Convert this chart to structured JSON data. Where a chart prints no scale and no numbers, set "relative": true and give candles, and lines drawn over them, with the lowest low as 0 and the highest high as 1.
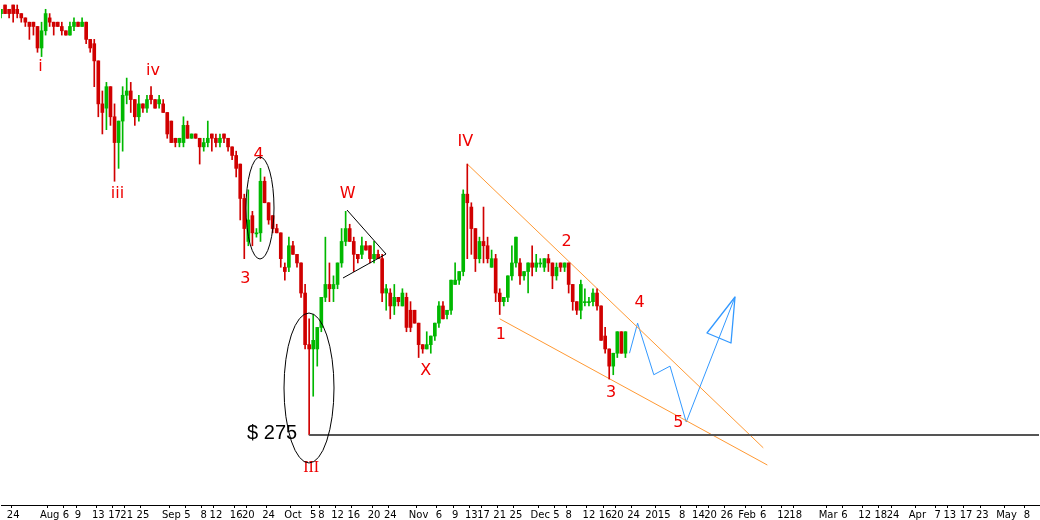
{
  "chart_data": {
    "type": "candlestick",
    "relative": true,
    "categories": [
      null,
      null,
      null,
      "24",
      null,
      null,
      null,
      null,
      null,
      null,
      null,
      null,
      "Aug",
      null,
      null,
      null,
      "6",
      null,
      null,
      "9",
      null,
      null,
      null,
      null,
      "13",
      null,
      null,
      null,
      "17",
      null,
      null,
      "21",
      null,
      null,
      null,
      "25",
      null,
      null,
      null,
      null,
      null,
      null,
      "Sep",
      null,
      null,
      null,
      "5",
      null,
      null,
      null,
      "8",
      null,
      null,
      "12",
      null,
      null,
      null,
      null,
      "16",
      null,
      null,
      "20",
      null,
      null,
      null,
      null,
      "24",
      null,
      null,
      null,
      null,
      null,
      "Oct",
      null,
      null,
      null,
      null,
      "5",
      null,
      "8",
      null,
      null,
      null,
      "12",
      null,
      null,
      null,
      "16",
      null,
      null,
      null,
      null,
      "20",
      null,
      null,
      null,
      "24",
      null,
      null,
      null,
      null,
      null,
      null,
      "Nov",
      null,
      null,
      null,
      null,
      "6",
      null,
      null,
      null,
      "9",
      null,
      null,
      null,
      "13",
      null,
      null,
      "17",
      null,
      null,
      null,
      "21",
      null,
      null,
      null,
      "25",
      null,
      null,
      null,
      null,
      null,
      "Dec",
      null,
      null,
      null,
      "5",
      null,
      null,
      "8",
      null,
      null,
      null,
      null,
      "12",
      null,
      null,
      null,
      "16",
      null,
      null,
      "20",
      null,
      null,
      null,
      "24",
      null,
      null,
      null,
      null,
      null,
      "2015",
      null,
      null,
      null,
      null,
      null,
      "8",
      null,
      null,
      null,
      "14",
      null,
      null,
      "20",
      null,
      null,
      null,
      "26",
      null,
      null,
      null,
      null,
      "Feb",
      null,
      null,
      null,
      "6",
      null,
      null,
      null,
      null,
      "12",
      null,
      null,
      "18",
      null,
      null,
      null,
      null,
      null,
      null,
      null,
      "Mar",
      null,
      null,
      null,
      "6",
      null,
      null,
      null,
      null,
      "12",
      null,
      null,
      null,
      "18",
      null,
      null,
      "24",
      null,
      null,
      null,
      null,
      null,
      "Apr",
      null,
      null,
      null,
      null,
      "7",
      null,
      null,
      "13",
      null,
      null,
      null,
      "17",
      null,
      null,
      null,
      "23",
      null,
      null,
      null,
      null,
      null,
      "May",
      null,
      null,
      null,
      null,
      "8",
      null,
      null,
      null
    ],
    "ohlc": [
      [
        0.98,
        0.99,
        0.97,
        0.99
      ],
      [
        1.0,
        1.0,
        0.98,
        0.98
      ],
      [
        0.99,
        0.99,
        0.97,
        0.98
      ],
      [
        1.0,
        1.0,
        0.96,
        0.98
      ],
      [
        0.99,
        1.0,
        0.97,
        0.98
      ],
      [
        0.98,
        0.98,
        0.96,
        0.97
      ],
      [
        0.97,
        0.97,
        0.95,
        0.96
      ],
      [
        0.96,
        0.96,
        0.92,
        0.95
      ],
      [
        0.96,
        0.96,
        0.93,
        0.95
      ],
      [
        0.95,
        0.95,
        0.89,
        0.9
      ],
      [
        0.9,
        0.96,
        0.88,
        0.94
      ],
      [
        0.94,
        0.99,
        0.93,
        0.98
      ],
      [
        0.97,
        0.98,
        0.95,
        0.96
      ],
      [
        0.96,
        0.96,
        0.93,
        0.95
      ],
      [
        0.96,
        0.96,
        0.95,
        0.95
      ],
      [
        0.95,
        0.96,
        0.93,
        0.94
      ],
      [
        0.94,
        0.94,
        0.93,
        0.93
      ],
      [
        0.93,
        0.96,
        0.93,
        0.95
      ],
      [
        0.95,
        0.97,
        0.94,
        0.96
      ],
      [
        0.96,
        0.96,
        0.95,
        0.95
      ],
      [
        0.95,
        0.97,
        0.95,
        0.96
      ],
      [
        0.96,
        0.96,
        0.91,
        0.92
      ],
      [
        0.92,
        0.92,
        0.89,
        0.9
      ],
      [
        0.91,
        0.92,
        0.81,
        0.87
      ],
      [
        0.87,
        0.87,
        0.74,
        0.77
      ],
      [
        0.77,
        0.8,
        0.7,
        0.75
      ],
      [
        0.76,
        0.82,
        0.71,
        0.81
      ],
      [
        0.81,
        0.81,
        0.72,
        0.74
      ],
      [
        0.74,
        0.77,
        0.59,
        0.68
      ],
      [
        0.68,
        0.73,
        0.62,
        0.73
      ],
      [
        0.73,
        0.81,
        0.66,
        0.79
      ],
      [
        0.79,
        0.83,
        0.77,
        0.8
      ],
      [
        0.8,
        0.82,
        0.75,
        0.78
      ],
      [
        0.78,
        0.78,
        0.72,
        0.74
      ],
      [
        0.74,
        0.79,
        0.73,
        0.77
      ],
      [
        0.77,
        0.77,
        0.75,
        0.76
      ],
      [
        0.76,
        0.79,
        0.75,
        0.78
      ],
      [
        0.79,
        0.81,
        0.77,
        0.78
      ],
      [
        0.78,
        0.78,
        0.76,
        0.76
      ],
      [
        0.77,
        0.79,
        0.76,
        0.78
      ],
      [
        0.77,
        0.78,
        0.75,
        0.75
      ],
      [
        0.75,
        0.75,
        0.69,
        0.7
      ],
      [
        0.73,
        0.73,
        0.68,
        0.68
      ],
      [
        0.69,
        0.69,
        0.67,
        0.68
      ],
      [
        0.68,
        0.69,
        0.67,
        0.69
      ],
      [
        0.68,
        0.74,
        0.67,
        0.72
      ],
      [
        0.72,
        0.73,
        0.69,
        0.69
      ],
      [
        0.69,
        0.7,
        0.69,
        0.7
      ],
      [
        0.7,
        0.7,
        0.69,
        0.69
      ],
      [
        0.69,
        0.69,
        0.63,
        0.67
      ],
      [
        0.67,
        0.69,
        0.66,
        0.68
      ],
      [
        0.68,
        0.73,
        0.67,
        0.69
      ],
      [
        0.7,
        0.7,
        0.66,
        0.69
      ],
      [
        0.69,
        0.7,
        0.67,
        0.68
      ],
      [
        0.68,
        0.7,
        0.67,
        0.69
      ],
      [
        0.7,
        0.7,
        0.68,
        0.69
      ],
      [
        0.69,
        0.69,
        0.66,
        0.67
      ],
      [
        0.67,
        0.67,
        0.64,
        0.65
      ],
      [
        0.65,
        0.66,
        0.6,
        0.62
      ],
      [
        0.63,
        0.63,
        0.5,
        0.55
      ],
      [
        0.55,
        0.56,
        0.41,
        0.48
      ],
      [
        0.45,
        0.57,
        0.44,
        0.5
      ],
      [
        0.51,
        0.52,
        0.44,
        0.47
      ],
      [
        0.47,
        0.48,
        0.46,
        0.47
      ],
      [
        0.47,
        0.62,
        0.45,
        0.59
      ],
      [
        0.59,
        0.6,
        0.54,
        0.54
      ],
      [
        0.54,
        0.54,
        0.49,
        0.5
      ],
      [
        0.51,
        0.51,
        0.47,
        0.48
      ],
      [
        0.48,
        0.49,
        0.47,
        0.47
      ],
      [
        0.47,
        0.47,
        0.39,
        0.41
      ],
      [
        0.39,
        0.4,
        0.36,
        0.38
      ],
      [
        0.39,
        0.46,
        0.38,
        0.44
      ],
      [
        0.44,
        0.45,
        0.42,
        0.42
      ],
      [
        0.42,
        0.42,
        0.39,
        0.4
      ],
      [
        0.4,
        0.4,
        0.32,
        0.33
      ],
      [
        0.33,
        0.35,
        0.2,
        0.21
      ],
      [
        0.21,
        0.27,
        0,
        0.2
      ],
      [
        0.2,
        0.28,
        0.09,
        0.22
      ],
      [
        0.2,
        0.25,
        0.16,
        0.25
      ],
      [
        0.25,
        0.32,
        0.24,
        0.32
      ],
      [
        0.32,
        0.46,
        0.31,
        0.35
      ],
      [
        0.35,
        0.4,
        0.31,
        0.34
      ],
      [
        0.34,
        0.37,
        0.31,
        0.35
      ],
      [
        0.35,
        0.4,
        0.34,
        0.4
      ],
      [
        0.4,
        0.48,
        0.39,
        0.45
      ],
      [
        0.45,
        0.52,
        0.44,
        0.48
      ],
      [
        0.48,
        0.49,
        0.45,
        0.45
      ],
      [
        0.45,
        0.46,
        0.38,
        0.42
      ],
      [
        0.42,
        0.42,
        0.4,
        0.41
      ],
      [
        0.42,
        0.46,
        0.41,
        0.44
      ],
      [
        0.44,
        0.45,
        0.43,
        0.43
      ],
      [
        0.44,
        0.44,
        0.4,
        0.41
      ],
      [
        0.41,
        0.45,
        0.4,
        0.42
      ],
      [
        0.42,
        0.43,
        0.41,
        0.41
      ],
      [
        0.41,
        0.42,
        0.31,
        0.33
      ],
      [
        0.33,
        0.35,
        0.29,
        0.34
      ],
      [
        0.33,
        0.34,
        0.27,
        0.3
      ],
      [
        0.3,
        0.35,
        0.28,
        0.32
      ],
      [
        0.32,
        0.32,
        0.3,
        0.31
      ],
      [
        0.3,
        0.34,
        0.3,
        0.33
      ],
      [
        0.32,
        0.33,
        0.24,
        0.25
      ],
      [
        0.29,
        0.31,
        0.24,
        0.25
      ],
      [
        0.29,
        0.29,
        0.26,
        0.26
      ],
      [
        0.26,
        0.26,
        0.18,
        0.21
      ],
      [
        0.21,
        0.21,
        0.19,
        0.2
      ],
      [
        0.2,
        0.24,
        0.2,
        0.21
      ],
      [
        0.21,
        0.23,
        0.19,
        0.23
      ],
      [
        0.23,
        0.26,
        0.22,
        0.26
      ],
      [
        0.26,
        0.31,
        0.25,
        0.3
      ],
      [
        0.3,
        0.31,
        0.27,
        0.27
      ],
      [
        0.28,
        0.29,
        0.27,
        0.29
      ],
      [
        0.29,
        0.36,
        0.28,
        0.36
      ],
      [
        0.35,
        0.4,
        0.35,
        0.36
      ],
      [
        0.36,
        0.38,
        0.35,
        0.38
      ],
      [
        0.38,
        0.57,
        0.37,
        0.56
      ],
      [
        0.56,
        0.63,
        0.41,
        0.54
      ],
      [
        0.53,
        0.54,
        0.42,
        0.48
      ],
      [
        0.48,
        0.48,
        0.38,
        0.41
      ],
      [
        0.41,
        0.46,
        0.4,
        0.45
      ],
      [
        0.45,
        0.53,
        0.4,
        0.44
      ],
      [
        0.44,
        0.46,
        0.4,
        0.41
      ],
      [
        0.39,
        0.43,
        0.39,
        0.41
      ],
      [
        0.41,
        0.42,
        0.31,
        0.33
      ],
      [
        0.33,
        0.34,
        0.28,
        0.31
      ],
      [
        0.31,
        0.32,
        0.3,
        0.32
      ],
      [
        0.32,
        0.37,
        0.31,
        0.37
      ],
      [
        0.37,
        0.44,
        0.36,
        0.4
      ],
      [
        0.4,
        0.46,
        0.39,
        0.46
      ],
      [
        0.4,
        0.41,
        0.35,
        0.37
      ],
      [
        0.37,
        0.38,
        0.36,
        0.38
      ],
      [
        0.38,
        0.4,
        0.33,
        0.4
      ],
      [
        0.4,
        0.44,
        0.37,
        0.39
      ],
      [
        0.39,
        0.42,
        0.38,
        0.4
      ],
      [
        0.4,
        0.41,
        0.39,
        0.4
      ],
      [
        0.39,
        0.41,
        0.38,
        0.41
      ],
      [
        0.41,
        0.42,
        0.38,
        0.4
      ],
      [
        0.4,
        0.4,
        0.34,
        0.37
      ],
      [
        0.37,
        0.4,
        0.36,
        0.39
      ],
      [
        0.4,
        0.4,
        0.38,
        0.39
      ],
      [
        0.39,
        0.4,
        0.38,
        0.4
      ],
      [
        0.4,
        0.4,
        0.33,
        0.35
      ],
      [
        0.35,
        0.35,
        0.29,
        0.31
      ],
      [
        0.31,
        0.31,
        0.28,
        0.29
      ],
      [
        0.29,
        0.36,
        0.27,
        0.35
      ],
      [
        0.31,
        0.34,
        0.3,
        0.31
      ],
      [
        0.31,
        0.32,
        0.3,
        0.31
      ],
      [
        0.31,
        0.34,
        0.3,
        0.33
      ],
      [
        0.33,
        0.34,
        0.29,
        0.3
      ],
      [
        0.3,
        0.3,
        0.22,
        0.22
      ],
      [
        0.23,
        0.25,
        0.19,
        0.2
      ],
      [
        0.2,
        0.2,
        0.13,
        0.16
      ],
      [
        0.16,
        0.19,
        0.14,
        0.19
      ],
      [
        0.19,
        0.24,
        0.18,
        0.24
      ],
      [
        0.24,
        0.24,
        0.19,
        0.19
      ],
      [
        0.19,
        0.24,
        0.18,
        0.24
      ],
      null,
      null,
      null,
      null,
      null,
      null,
      null,
      null,
      null,
      null,
      null,
      null,
      null,
      null,
      null,
      null,
      null,
      null,
      null,
      null,
      null,
      null,
      null,
      null,
      null,
      null,
      null,
      null,
      null,
      null,
      null,
      null,
      null,
      null,
      null,
      null,
      null,
      null,
      null,
      null,
      null,
      null,
      null,
      null,
      null,
      null,
      null,
      null,
      null,
      null,
      null,
      null,
      null,
      null,
      null,
      null,
      null,
      null,
      null,
      null,
      null,
      null,
      null,
      null,
      null,
      null,
      null,
      null,
      null,
      null,
      null,
      null,
      null,
      null,
      null,
      null,
      null,
      null,
      null,
      null,
      null,
      null,
      null,
      null,
      null,
      null,
      null,
      null,
      null,
      null,
      null,
      null,
      null,
      null,
      null,
      null,
      null,
      null,
      null,
      null,
      null,
      null
    ],
    "series": [
      {
        "type": "line",
        "color": "#ff9933",
        "values": [
          null,
          null,
          null,
          null,
          null,
          null,
          null,
          null,
          null,
          null,
          null,
          null,
          null,
          null,
          null,
          null,
          null,
          null,
          null,
          null,
          null,
          null,
          null,
          null,
          null,
          null,
          null,
          null,
          null,
          null,
          null,
          null,
          null,
          null,
          null,
          null,
          null,
          null,
          null,
          null,
          null,
          null,
          null,
          null,
          null,
          null,
          null,
          null,
          null,
          null,
          null,
          null,
          null,
          null,
          null,
          null,
          null,
          null,
          null,
          null,
          null,
          null,
          null,
          null,
          null,
          null,
          null,
          null,
          null,
          null,
          null,
          null,
          null,
          null,
          null,
          null,
          null,
          null,
          null,
          null,
          null,
          null,
          null,
          null,
          null,
          null,
          null,
          null,
          null,
          null,
          null,
          null,
          null,
          null,
          null,
          null,
          null,
          null,
          null,
          null,
          null,
          null,
          null,
          null,
          null,
          null,
          null,
          null,
          null,
          null,
          null,
          null,
          null,
          null,
          null,
          0.63,
          null,
          null,
          null,
          null,
          null,
          null,
          null,
          null,
          null,
          null,
          null,
          null,
          null,
          null,
          null,
          null,
          null,
          null,
          null,
          null,
          null,
          null,
          null,
          null,
          null,
          null,
          null,
          null,
          null,
          null,
          null,
          null,
          null,
          null,
          null,
          null,
          null,
          null,
          null,
          null,
          null,
          null,
          null,
          null,
          null,
          null,
          null,
          null,
          null,
          null,
          null,
          null,
          null,
          null,
          null,
          null,
          null,
          null,
          null,
          null,
          null,
          null,
          null,
          null,
          null,
          null,
          null,
          null,
          null,
          null,
          null,
          null,
          -0.03,
          null,
          null,
          null,
          null,
          null,
          null,
          null,
          null,
          null,
          null,
          null,
          null,
          null,
          null,
          null,
          null,
          null,
          null,
          null,
          null,
          null,
          null,
          null,
          null,
          null,
          null,
          null,
          null,
          null,
          null,
          null,
          null,
          null,
          null,
          null,
          null,
          null,
          null,
          null,
          null,
          null,
          null,
          null,
          null,
          null,
          null,
          null,
          null,
          null,
          null,
          null,
          null,
          null,
          null,
          null,
          null,
          null,
          null,
          null,
          null,
          null,
          null,
          null,
          null,
          null,
          null,
          null,
          null
        ]
      },
      {
        "type": "line",
        "color": "#ff9933",
        "values": [
          null,
          null,
          null,
          null,
          null,
          null,
          null,
          null,
          null,
          null,
          null,
          null,
          null,
          null,
          null,
          null,
          null,
          null,
          null,
          null,
          null,
          null,
          null,
          null,
          null,
          null,
          null,
          null,
          null,
          null,
          null,
          null,
          null,
          null,
          null,
          null,
          null,
          null,
          null,
          null,
          null,
          null,
          null,
          null,
          null,
          null,
          null,
          null,
          null,
          null,
          null,
          null,
          null,
          null,
          null,
          null,
          null,
          null,
          null,
          null,
          null,
          null,
          null,
          null,
          null,
          null,
          null,
          null,
          null,
          null,
          null,
          null,
          null,
          null,
          null,
          null,
          null,
          null,
          null,
          null,
          null,
          null,
          null,
          null,
          null,
          null,
          null,
          null,
          null,
          null,
          null,
          null,
          null,
          null,
          null,
          null,
          null,
          null,
          null,
          null,
          null,
          null,
          null,
          null,
          null,
          null,
          null,
          null,
          null,
          null,
          null,
          null,
          null,
          null,
          null,
          null,
          null,
          null,
          null,
          null,
          null,
          null,
          null,
          0.27,
          null,
          null,
          null,
          null,
          null,
          null,
          null,
          null,
          null,
          null,
          null,
          null,
          null,
          null,
          null,
          null,
          null,
          null,
          null,
          null,
          null,
          null,
          null,
          null,
          null,
          null,
          null,
          null,
          null,
          null,
          null,
          null,
          null,
          null,
          null,
          null,
          null,
          null,
          null,
          null,
          null,
          null,
          null,
          null,
          null,
          null,
          null,
          null,
          null,
          null,
          null,
          null,
          null,
          null,
          null,
          null,
          null,
          null,
          null,
          null,
          null,
          null,
          null,
          null,
          null,
          -0.07,
          null,
          null,
          null,
          null,
          null,
          null,
          null,
          null,
          null,
          null,
          null,
          null,
          null,
          null,
          null,
          null,
          null,
          null,
          null,
          null,
          null,
          null,
          null,
          null,
          null,
          null,
          null,
          null,
          null,
          null,
          null,
          null,
          null,
          null,
          null,
          null,
          null,
          null,
          null,
          null,
          null,
          null,
          null,
          null,
          null,
          null,
          null,
          null,
          null,
          null,
          null,
          null,
          null,
          null,
          null,
          null,
          null,
          null,
          null,
          null,
          null,
          null,
          null,
          null,
          null,
          null,
          null
        ]
      },
      {
        "type": "line",
        "color": "#3399ff",
        "values": [
          null,
          null,
          null,
          null,
          null,
          null,
          null,
          null,
          null,
          null,
          null,
          null,
          null,
          null,
          null,
          null,
          null,
          null,
          null,
          null,
          null,
          null,
          null,
          null,
          null,
          null,
          null,
          null,
          null,
          null,
          null,
          null,
          null,
          null,
          null,
          null,
          null,
          null,
          null,
          null,
          null,
          null,
          null,
          null,
          null,
          null,
          null,
          null,
          null,
          null,
          null,
          null,
          null,
          null,
          null,
          null,
          null,
          null,
          null,
          null,
          null,
          null,
          null,
          null,
          null,
          null,
          null,
          null,
          null,
          null,
          null,
          null,
          null,
          null,
          null,
          null,
          null,
          null,
          null,
          null,
          null,
          null,
          null,
          null,
          null,
          null,
          null,
          null,
          null,
          null,
          null,
          null,
          null,
          null,
          null,
          null,
          null,
          null,
          null,
          null,
          null,
          null,
          null,
          null,
          null,
          null,
          null,
          null,
          null,
          null,
          null,
          null,
          null,
          null,
          null,
          null,
          null,
          null,
          null,
          null,
          null,
          null,
          null,
          null,
          null,
          null,
          null,
          null,
          null,
          null,
          null,
          null,
          null,
          null,
          null,
          null,
          null,
          null,
          null,
          null,
          null,
          null,
          null,
          null,
          null,
          null,
          null,
          null,
          null,
          null,
          null,
          null,
          null,
          null,
          null,
          0.19,
          null,
          0.26,
          null,
          null,
          null,
          0.14,
          null,
          null,
          null,
          0.16,
          null,
          null,
          null,
          0.03,
          null,
          null,
          null,
          null,
          null,
          null,
          null,
          null,
          null,
          null,
          null,
          0.32,
          null,
          null,
          null,
          null,
          null,
          null,
          null,
          null,
          null,
          null,
          null,
          null,
          null,
          null,
          null,
          null,
          null,
          null,
          null,
          null,
          null,
          null,
          null,
          null,
          null,
          null,
          null,
          null,
          null,
          null,
          null,
          null,
          null,
          null,
          null,
          null,
          null,
          null,
          null,
          null,
          null,
          null,
          null,
          null,
          null,
          null,
          null,
          null,
          null,
          null,
          null,
          null,
          null,
          null,
          null,
          null,
          null,
          null,
          null,
          null,
          null,
          null,
          null,
          null,
          null,
          null,
          null,
          null,
          null,
          null,
          null,
          null,
          null,
          null,
          null
        ]
      }
    ],
    "ref_lines": [
      {
        "axis": "y",
        "value": 0,
        "color": "#555555"
      }
    ],
    "annotations": [
      {
        "text": "i",
        "y": 0.89
      },
      {
        "text": "iv",
        "y": 0.81
      },
      {
        "text": "iii",
        "y": 0.59
      },
      {
        "text": "4",
        "y": 0.62
      },
      {
        "text": "3",
        "y": 0.41
      },
      {
        "text": "W",
        "y": 0.52
      },
      {
        "text": "III",
        "y": 0
      },
      {
        "text": "X",
        "y": 0.18
      },
      {
        "text": "IV",
        "y": 0.63
      },
      {
        "text": "1",
        "y": 0.28
      },
      {
        "text": "2",
        "y": 0.4
      },
      {
        "text": "3",
        "y": 0.13
      },
      {
        "text": "4",
        "y": 0.26
      },
      "5",
      "$ 275"
    ]
  }
}
